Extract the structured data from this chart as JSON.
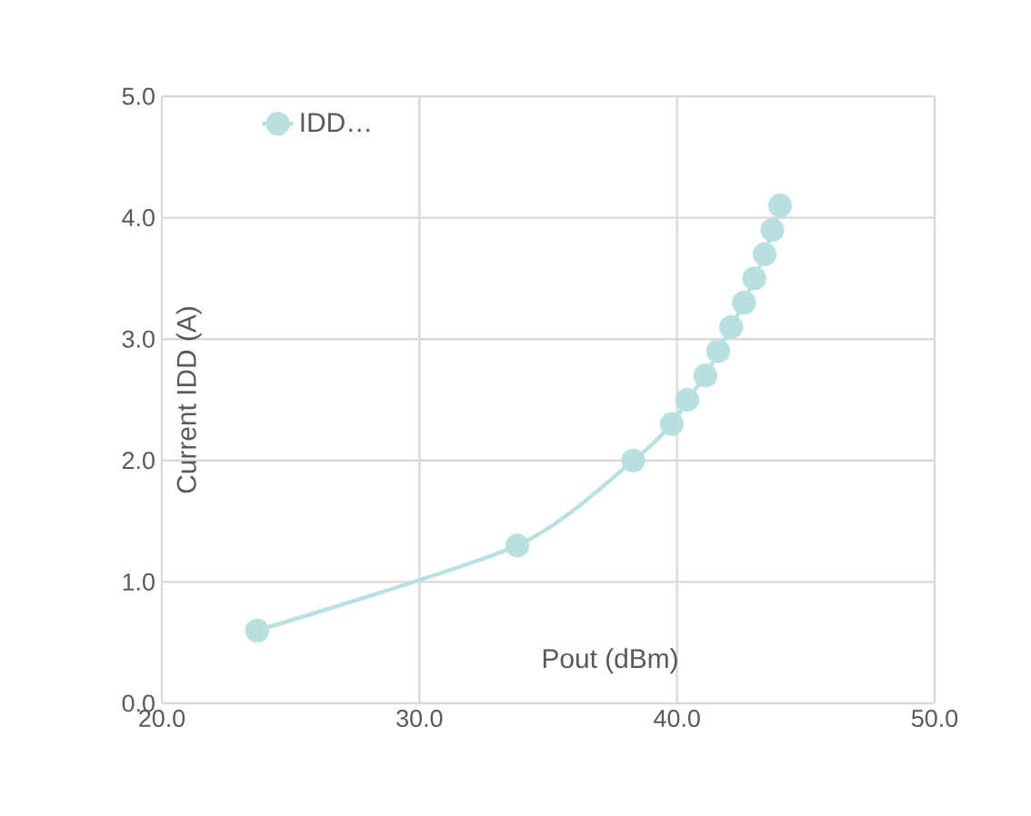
{
  "chart_data": {
    "type": "line",
    "xlabel": "Pout (dBm)",
    "ylabel": "Current IDD (A)",
    "series": [
      {
        "name": "IDD…",
        "color": "#b8e0e1",
        "x": [
          23.7,
          33.8,
          38.3,
          39.8,
          40.4,
          41.1,
          41.6,
          42.1,
          42.6,
          43.0,
          43.4,
          43.7,
          44.0
        ],
        "values": [
          0.6,
          1.3,
          2.0,
          2.3,
          2.5,
          2.7,
          2.9,
          3.1,
          3.3,
          3.5,
          3.7,
          3.9,
          4.1
        ]
      }
    ],
    "xlim": [
      20,
      50
    ],
    "ylim": [
      0,
      5
    ],
    "xticks": [
      {
        "value": 20,
        "label": "20.0"
      },
      {
        "value": 30,
        "label": "30.0"
      },
      {
        "value": 40,
        "label": "40.0"
      },
      {
        "value": 50,
        "label": "50.0"
      }
    ],
    "yticks": [
      {
        "value": 0,
        "label": "0.0"
      },
      {
        "value": 1,
        "label": "1.0"
      },
      {
        "value": 2,
        "label": "2.0"
      },
      {
        "value": 3,
        "label": "3.0"
      },
      {
        "value": 4,
        "label": "4.0"
      },
      {
        "value": 5,
        "label": "5.0"
      }
    ],
    "grid": true,
    "legend": "top left",
    "marker": "circle",
    "line_style": "solid"
  }
}
